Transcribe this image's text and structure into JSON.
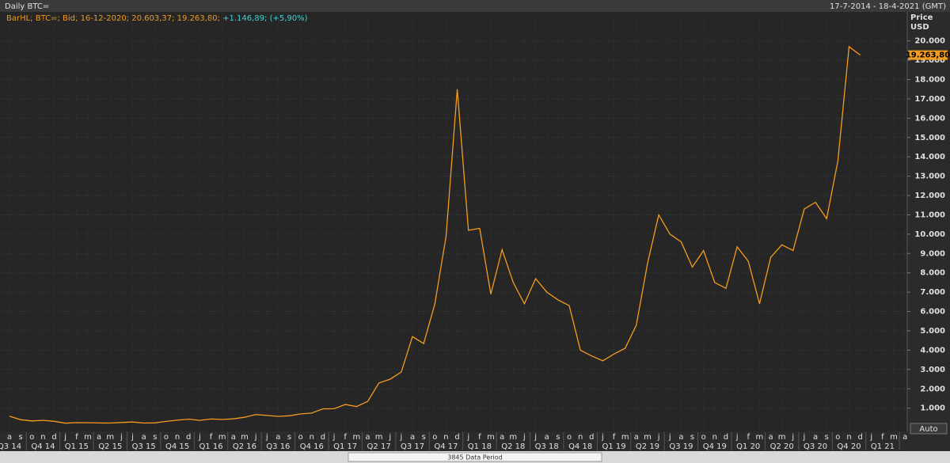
{
  "chart_data": {
    "type": "line",
    "title": "Daily BTC=",
    "date_range": "17-7-2014 - 18-4-2021 (GMT)",
    "legend": "BarHL; BTC=; Bid; 16-12-2020; 20.603,37; 19.263,80;",
    "change": "+1.146,89; (+5,90%)",
    "y_axis_label": "Price",
    "y_axis_unit": "USD",
    "auto_button": "Auto",
    "footer": "3845 Data Period",
    "last_price": {
      "value": 19263.8,
      "label": "19.263,80"
    },
    "categories": [
      "a",
      "s",
      "o",
      "n",
      "d",
      "j",
      "f",
      "m",
      "a",
      "m",
      "j",
      "j",
      "a",
      "s",
      "o",
      "n",
      "d",
      "j",
      "f",
      "m",
      "a",
      "m",
      "j",
      "j",
      "a",
      "s",
      "o",
      "n",
      "d",
      "j",
      "f",
      "m",
      "a",
      "m",
      "j",
      "j",
      "a",
      "s",
      "o",
      "n",
      "d",
      "j",
      "f",
      "m",
      "a",
      "m",
      "j",
      "j",
      "a",
      "s",
      "o",
      "n",
      "d",
      "j",
      "f",
      "m",
      "a",
      "m",
      "j",
      "j",
      "a",
      "s",
      "o",
      "n",
      "d",
      "j",
      "f",
      "m",
      "a",
      "m",
      "j",
      "j",
      "a",
      "s",
      "o",
      "n",
      "d",
      "j",
      "f",
      "m",
      "a"
    ],
    "quarters": [
      "Q3 14",
      "Q4 14",
      "Q1 15",
      "Q2 15",
      "Q3 15",
      "Q4 15",
      "Q1 16",
      "Q2 16",
      "Q3 16",
      "Q4 16",
      "Q1 17",
      "Q2 17",
      "Q3 17",
      "Q4 17",
      "Q1 18",
      "Q2 18",
      "Q3 18",
      "Q4 18",
      "Q1 19",
      "Q2 19",
      "Q3 19",
      "Q4 19",
      "Q1 20",
      "Q2 20",
      "Q3 20",
      "Q4 20",
      "Q1 21"
    ],
    "series": [
      {
        "name": "BTC=",
        "color": "#f39c1f",
        "values": [
          580,
          400,
          340,
          370,
          320,
          220,
          250,
          245,
          235,
          230,
          260,
          285,
          230,
          237,
          315,
          378,
          430,
          370,
          437,
          416,
          448,
          530,
          670,
          625,
          575,
          608,
          700,
          745,
          963,
          970,
          1190,
          1080,
          1350,
          2300,
          2500,
          2870,
          4700,
          4340,
          6400,
          9900,
          17500,
          10200,
          10300,
          6900,
          9200,
          7500,
          6400,
          7700,
          7000,
          6600,
          6300,
          4000,
          3700,
          3450,
          3800,
          4100,
          5300,
          8500,
          11000,
          10000,
          9600,
          8300,
          9150,
          7500,
          7200,
          9350,
          8600,
          6400,
          8800,
          9450,
          9150,
          11300,
          11650,
          10800,
          13800,
          19700,
          19263.8,
          null,
          null,
          null,
          null
        ]
      }
    ],
    "ylim": [
      -200,
      21500
    ],
    "yticks": [
      {
        "value": 1000,
        "label": "1.000"
      },
      {
        "value": 2000,
        "label": "2.000"
      },
      {
        "value": 3000,
        "label": "3.000"
      },
      {
        "value": 4000,
        "label": "4.000"
      },
      {
        "value": 5000,
        "label": "5.000"
      },
      {
        "value": 6000,
        "label": "6.000"
      },
      {
        "value": 7000,
        "label": "7.000"
      },
      {
        "value": 8000,
        "label": "8.000"
      },
      {
        "value": 9000,
        "label": "9.000"
      },
      {
        "value": 10000,
        "label": "10.000"
      },
      {
        "value": 11000,
        "label": "11.000"
      },
      {
        "value": 12000,
        "label": "12.000"
      },
      {
        "value": 13000,
        "label": "13.000"
      },
      {
        "value": 14000,
        "label": "14.000"
      },
      {
        "value": 15000,
        "label": "15.000"
      },
      {
        "value": 16000,
        "label": "16.000"
      },
      {
        "value": 17000,
        "label": "17.000"
      },
      {
        "value": 18000,
        "label": "18.000"
      },
      {
        "value": 19000,
        "label": "19.000"
      },
      {
        "value": 20000,
        "label": "20.000"
      }
    ],
    "grid": true
  }
}
